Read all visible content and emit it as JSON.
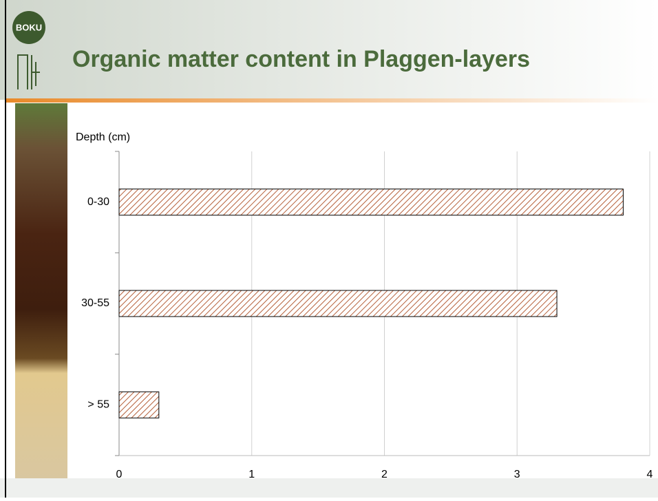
{
  "logo": "BOKU",
  "chart_data": {
    "type": "bar",
    "orientation": "horizontal",
    "title": "Organic matter content in Plaggen-layers",
    "y_label": "Depth (cm)",
    "categories": [
      "0-30",
      "30-55",
      "> 55"
    ],
    "values": [
      3.8,
      3.3,
      0.3
    ],
    "color": "#b5603a",
    "xlim": [
      0,
      4
    ],
    "xticks": [
      0,
      1,
      2,
      3,
      4
    ],
    "grid": true
  }
}
